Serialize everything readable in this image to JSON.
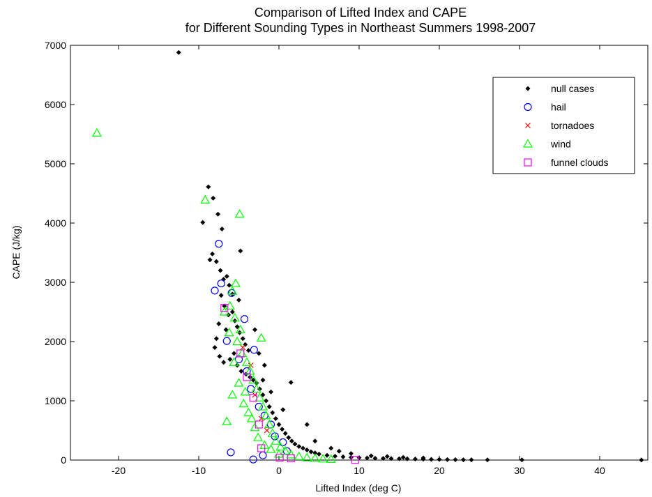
{
  "chart_data": {
    "type": "scatter",
    "title": "Comparison of Lifted Index and CAPE",
    "subtitle": "for Different Sounding Types in Northeast Summers 1998-2007",
    "xlabel": "Lifted Index (deg C)",
    "ylabel": "CAPE (J/kg)",
    "xlim": [
      -26,
      46
    ],
    "ylim": [
      0,
      7000
    ],
    "xticks": [
      -20,
      -10,
      0,
      10,
      20,
      30,
      40
    ],
    "yticks": [
      0,
      1000,
      2000,
      3000,
      4000,
      5000,
      6000,
      7000
    ],
    "grid": false,
    "legend_position": "top-right",
    "series": [
      {
        "name": "null cases",
        "marker": "dot",
        "color": "#000000",
        "points": [
          [
            -12.5,
            6880
          ],
          [
            -8.8,
            4610
          ],
          [
            -9.5,
            4010
          ],
          [
            -8.2,
            4420
          ],
          [
            -7.6,
            4150
          ],
          [
            -7.1,
            3900
          ],
          [
            -4.8,
            3530
          ],
          [
            -8.3,
            3480
          ],
          [
            -7.8,
            3350
          ],
          [
            -8.6,
            3380
          ],
          [
            -7.3,
            3200
          ],
          [
            -6.9,
            3050
          ],
          [
            -6.5,
            3100
          ],
          [
            -6.2,
            2950
          ],
          [
            -7.2,
            2780
          ],
          [
            -6.8,
            2600
          ],
          [
            -6.3,
            2450
          ],
          [
            -5.8,
            2500
          ],
          [
            -5.5,
            2350
          ],
          [
            -5.2,
            2250
          ],
          [
            -4.9,
            2150
          ],
          [
            -4.5,
            2050
          ],
          [
            -4.2,
            1950
          ],
          [
            -3.8,
            1850
          ],
          [
            -7.5,
            2300
          ],
          [
            -7.8,
            2050
          ],
          [
            -8.0,
            1900
          ],
          [
            -7.4,
            1750
          ],
          [
            -6.9,
            1650
          ],
          [
            -6.1,
            1700
          ],
          [
            -5.6,
            1800
          ],
          [
            -5.2,
            1600
          ],
          [
            -4.7,
            1500
          ],
          [
            -4.1,
            1450
          ],
          [
            -3.6,
            1400
          ],
          [
            -3.2,
            1350
          ],
          [
            -2.8,
            1300
          ],
          [
            -2.4,
            1200
          ],
          [
            -2.0,
            1100
          ],
          [
            -1.6,
            1000
          ],
          [
            -1.2,
            900
          ],
          [
            -0.8,
            800
          ],
          [
            -0.4,
            700
          ],
          [
            0.0,
            600
          ],
          [
            0.4,
            520
          ],
          [
            0.8,
            450
          ],
          [
            1.2,
            380
          ],
          [
            1.6,
            320
          ],
          [
            2.0,
            270
          ],
          [
            2.5,
            230
          ],
          [
            3.0,
            200
          ],
          [
            3.5,
            170
          ],
          [
            4.0,
            140
          ],
          [
            4.5,
            120
          ],
          [
            5.0,
            100
          ],
          [
            6.0,
            80
          ],
          [
            7.0,
            65
          ],
          [
            8.0,
            55
          ],
          [
            9.0,
            45
          ],
          [
            10.0,
            40
          ],
          [
            11.0,
            35
          ],
          [
            12.0,
            30
          ],
          [
            13.0,
            28
          ],
          [
            14.0,
            25
          ],
          [
            15.0,
            22
          ],
          [
            16.0,
            20
          ],
          [
            17.0,
            18
          ],
          [
            18.0,
            15
          ],
          [
            19.0,
            12
          ],
          [
            20.0,
            10
          ],
          [
            21.0,
            8
          ],
          [
            22.0,
            6
          ],
          [
            23.0,
            5
          ],
          [
            24.0,
            4
          ],
          [
            26.0,
            3
          ],
          [
            30.3,
            3
          ],
          [
            45.2,
            2
          ],
          [
            1.5,
            1310
          ],
          [
            -2.0,
            1350
          ],
          [
            -1.0,
            1150
          ],
          [
            0.5,
            850
          ],
          [
            3.5,
            600
          ],
          [
            4.5,
            320
          ],
          [
            6.5,
            200
          ],
          [
            7.5,
            150
          ],
          [
            9.0,
            110
          ],
          [
            11.5,
            70
          ],
          [
            13.5,
            60
          ],
          [
            15.5,
            45
          ],
          [
            18.0,
            35
          ],
          [
            -3.0,
            2200
          ],
          [
            -2.5,
            1800
          ],
          [
            -1.8,
            1600
          ],
          [
            -5.0,
            2700
          ],
          [
            -5.8,
            2800
          ],
          [
            -6.6,
            2200
          ]
        ]
      },
      {
        "name": "hail",
        "marker": "circle",
        "color": "#0000ff",
        "points": [
          [
            -7.5,
            3650
          ],
          [
            -7.2,
            2980
          ],
          [
            -8.0,
            2860
          ],
          [
            -5.9,
            2820
          ],
          [
            -4.3,
            2380
          ],
          [
            -6.5,
            2010
          ],
          [
            -3.1,
            1860
          ],
          [
            -5.0,
            1700
          ],
          [
            -4.0,
            1500
          ],
          [
            -3.5,
            1200
          ],
          [
            -2.5,
            900
          ],
          [
            -1.8,
            750
          ],
          [
            -1.0,
            600
          ],
          [
            -0.5,
            400
          ],
          [
            0.5,
            300
          ],
          [
            -6.0,
            130
          ],
          [
            -3.2,
            10
          ],
          [
            -2.0,
            80
          ],
          [
            1.0,
            150
          ]
        ]
      },
      {
        "name": "tornadoes",
        "marker": "x",
        "color": "#ff0000",
        "points": [
          [
            -4.5,
            1900
          ],
          [
            -3.5,
            1600
          ],
          [
            -3.0,
            1100
          ],
          [
            -2.2,
            700
          ],
          [
            -1.5,
            500
          ]
        ]
      },
      {
        "name": "wind",
        "marker": "triangle",
        "color": "#00ff00",
        "points": [
          [
            -22.7,
            5520
          ],
          [
            -9.2,
            4390
          ],
          [
            -4.9,
            4150
          ],
          [
            -5.4,
            2980
          ],
          [
            -5.8,
            2850
          ],
          [
            -6.1,
            2600
          ],
          [
            -5.5,
            2400
          ],
          [
            -4.8,
            2200
          ],
          [
            -2.2,
            2060
          ],
          [
            -5.2,
            2000
          ],
          [
            -4.6,
            1800
          ],
          [
            -4.0,
            1650
          ],
          [
            -3.6,
            1500
          ],
          [
            -3.2,
            1350
          ],
          [
            -2.8,
            1200
          ],
          [
            -2.4,
            1050
          ],
          [
            -2.0,
            900
          ],
          [
            -1.6,
            750
          ],
          [
            -1.2,
            600
          ],
          [
            -0.8,
            450
          ],
          [
            -0.4,
            320
          ],
          [
            0.2,
            220
          ],
          [
            0.8,
            150
          ],
          [
            1.5,
            90
          ],
          [
            2.5,
            60
          ],
          [
            3.5,
            40
          ],
          [
            4.5,
            30
          ],
          [
            5.5,
            20
          ],
          [
            6.5,
            15
          ],
          [
            -6.5,
            650
          ],
          [
            -5.8,
            1100
          ],
          [
            -5.0,
            1300
          ],
          [
            -4.4,
            950
          ],
          [
            -3.8,
            800
          ],
          [
            -3.0,
            550
          ],
          [
            -2.6,
            380
          ],
          [
            -1.8,
            250
          ],
          [
            -1.0,
            180
          ],
          [
            0.0,
            100
          ],
          [
            -6.8,
            2500
          ],
          [
            -6.2,
            2150
          ],
          [
            -5.6,
            1650
          ],
          [
            -4.2,
            1150
          ],
          [
            -3.4,
            700
          ]
        ]
      },
      {
        "name": "funnel clouds",
        "marker": "square",
        "color": "#ff00ff",
        "points": [
          [
            -6.8,
            2570
          ],
          [
            -4.8,
            1800
          ],
          [
            -4.0,
            1400
          ],
          [
            -3.2,
            1050
          ],
          [
            -2.5,
            600
          ],
          [
            -2.2,
            200
          ],
          [
            0.1,
            40
          ],
          [
            1.5,
            30
          ],
          [
            9.5,
            5
          ]
        ]
      }
    ]
  }
}
